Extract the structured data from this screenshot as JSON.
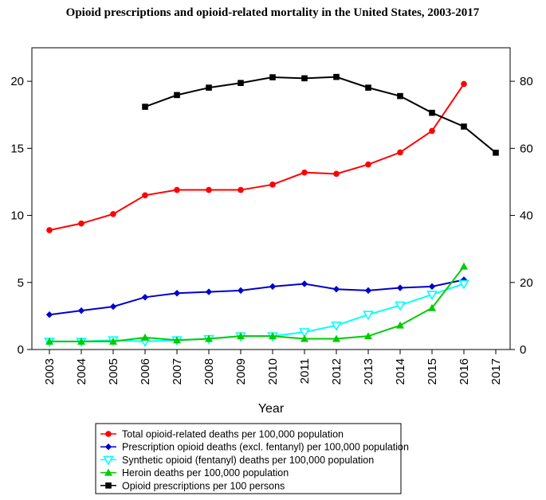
{
  "chart_data": {
    "type": "line",
    "title": "Opioid prescriptions and opioid-related mortality in the United States, 2003-2017",
    "xlabel": "Year",
    "ylabel": "",
    "y2label": "",
    "x": [
      2003,
      2004,
      2005,
      2006,
      2007,
      2008,
      2009,
      2010,
      2011,
      2012,
      2013,
      2014,
      2015,
      2016,
      2017
    ],
    "x_tick_labels": [
      "2003",
      "2004",
      "2005",
      "2006",
      "2007",
      "2008",
      "2009",
      "2010",
      "2011",
      "2012",
      "2013",
      "2014",
      "2015",
      "2016",
      "2017"
    ],
    "ylim": [
      0,
      22.5
    ],
    "y_ticks": [
      0,
      5,
      10,
      15,
      20
    ],
    "y_tick_labels": [
      "0",
      "5",
      "10",
      "15",
      "20"
    ],
    "y2lim": [
      0,
      90
    ],
    "y2_ticks": [
      0,
      20,
      40,
      60,
      80
    ],
    "y2_tick_labels": [
      "0",
      "20",
      "40",
      "60",
      "80"
    ],
    "legend_position": "bottom",
    "series": [
      {
        "name": "Total opioid-related deaths per 100,000 population",
        "axis": "left",
        "color": "#ff0000",
        "marker": "circle",
        "x": [
          2003,
          2004,
          2005,
          2006,
          2007,
          2008,
          2009,
          2010,
          2011,
          2012,
          2013,
          2014,
          2015,
          2016
        ],
        "values": [
          8.9,
          9.4,
          10.1,
          11.5,
          11.9,
          11.9,
          11.9,
          12.3,
          13.2,
          13.1,
          13.8,
          14.7,
          16.3,
          19.8
        ]
      },
      {
        "name": "Prescription opioid deaths (excl. fentanyl) per 100,000 population",
        "axis": "left",
        "color": "#0000cc",
        "marker": "diamond",
        "x": [
          2003,
          2004,
          2005,
          2006,
          2007,
          2008,
          2009,
          2010,
          2011,
          2012,
          2013,
          2014,
          2015,
          2016
        ],
        "values": [
          2.6,
          2.9,
          3.2,
          3.9,
          4.2,
          4.3,
          4.4,
          4.7,
          4.9,
          4.5,
          4.4,
          4.6,
          4.7,
          5.2
        ]
      },
      {
        "name": "Synthetic opioid (fentanyl) deaths per 100,000 population",
        "axis": "left",
        "color": "#00ffff",
        "marker": "triangle-down-open",
        "x": [
          2003,
          2004,
          2005,
          2006,
          2007,
          2008,
          2009,
          2010,
          2011,
          2012,
          2013,
          2014,
          2015,
          2016
        ],
        "values": [
          0.6,
          0.6,
          0.7,
          0.6,
          0.7,
          0.8,
          1.0,
          1.0,
          1.3,
          1.8,
          2.6,
          3.3,
          4.1,
          4.9
        ]
      },
      {
        "name": "Heroin deaths per 100,000 population",
        "axis": "left",
        "color": "#00cc00",
        "marker": "triangle-up",
        "x": [
          2003,
          2004,
          2005,
          2006,
          2007,
          2008,
          2009,
          2010,
          2011,
          2012,
          2013,
          2014,
          2015,
          2016
        ],
        "values": [
          0.6,
          0.6,
          0.6,
          0.9,
          0.7,
          0.8,
          1.0,
          1.0,
          0.8,
          0.8,
          1.0,
          1.8,
          3.1,
          6.2
        ]
      },
      {
        "name": "Opioid prescriptions per 100 persons",
        "axis": "right",
        "color": "#000000",
        "marker": "square",
        "x": [
          2006,
          2007,
          2008,
          2009,
          2010,
          2011,
          2012,
          2013,
          2014,
          2015,
          2016,
          2017
        ],
        "values": [
          72.4,
          75.9,
          78.1,
          79.5,
          81.2,
          80.9,
          81.3,
          78.1,
          75.6,
          70.6,
          66.5,
          58.7
        ]
      }
    ]
  }
}
